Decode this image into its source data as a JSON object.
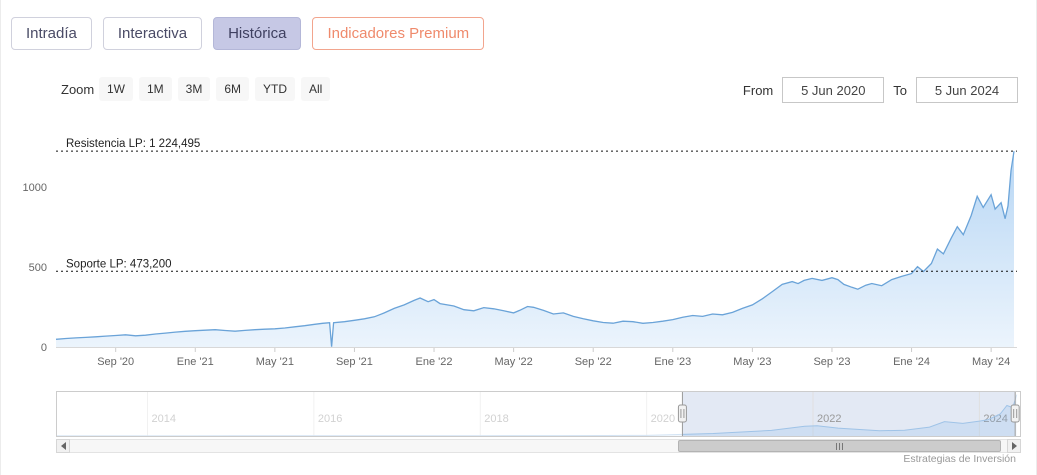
{
  "tabs": [
    {
      "label": "Intradía",
      "active": false
    },
    {
      "label": "Interactiva",
      "active": false
    },
    {
      "label": "Histórica",
      "active": true
    },
    {
      "label": "Indicadores Premium",
      "active": false,
      "premium": true
    }
  ],
  "toolbar": {
    "zoom_label": "Zoom",
    "zoom_buttons": [
      "1W",
      "1M",
      "3M",
      "6M",
      "YTD",
      "All"
    ],
    "from_label": "From",
    "from_value": "5 Jun 2020",
    "to_label": "To",
    "to_value": "5 Jun 2024"
  },
  "chart_data": {
    "type": "area",
    "title": "",
    "xlabel": "",
    "ylabel": "",
    "x_unit": "months since Jun 2020",
    "xlim": [
      0,
      48.3
    ],
    "ylim": [
      0,
      1300
    ],
    "grid": false,
    "yticks": [
      {
        "v": 0,
        "label": "0"
      },
      {
        "v": 500,
        "label": "500"
      },
      {
        "v": 1000,
        "label": "1000"
      }
    ],
    "xticks": [
      {
        "p": 3,
        "label": "Sep '20"
      },
      {
        "p": 7,
        "label": "Ene '21"
      },
      {
        "p": 11,
        "label": "May '21"
      },
      {
        "p": 15,
        "label": "Sep '21"
      },
      {
        "p": 19,
        "label": "Ene '22"
      },
      {
        "p": 23,
        "label": "May '22"
      },
      {
        "p": 27,
        "label": "Sep '22"
      },
      {
        "p": 31,
        "label": "Ene '23"
      },
      {
        "p": 35,
        "label": "May '23"
      },
      {
        "p": 39,
        "label": "Sep '23"
      },
      {
        "p": 43,
        "label": "Ene '24"
      },
      {
        "p": 47,
        "label": "May '24"
      }
    ],
    "points": [
      [
        0,
        48
      ],
      [
        0.5,
        53
      ],
      [
        1,
        57
      ],
      [
        1.5,
        60
      ],
      [
        2,
        64
      ],
      [
        2.5,
        68
      ],
      [
        3,
        72
      ],
      [
        3.5,
        76
      ],
      [
        4,
        70
      ],
      [
        4.5,
        74
      ],
      [
        5,
        81
      ],
      [
        5.5,
        87
      ],
      [
        6,
        93
      ],
      [
        6.5,
        98
      ],
      [
        7,
        102
      ],
      [
        7.5,
        105
      ],
      [
        8,
        108
      ],
      [
        8.5,
        103
      ],
      [
        9,
        99
      ],
      [
        9.5,
        104
      ],
      [
        10,
        108
      ],
      [
        10.5,
        111
      ],
      [
        11,
        114
      ],
      [
        11.5,
        119
      ],
      [
        12,
        126
      ],
      [
        12.5,
        133
      ],
      [
        13,
        142
      ],
      [
        13.4,
        148
      ],
      [
        13.75,
        152
      ],
      [
        13.85,
        2
      ],
      [
        13.95,
        152
      ],
      [
        14.5,
        158
      ],
      [
        15,
        167
      ],
      [
        15.5,
        176
      ],
      [
        16,
        189
      ],
      [
        16.5,
        213
      ],
      [
        17,
        241
      ],
      [
        17.5,
        263
      ],
      [
        18,
        291
      ],
      [
        18.3,
        306
      ],
      [
        18.7,
        283
      ],
      [
        19,
        296
      ],
      [
        19.3,
        271
      ],
      [
        20,
        256
      ],
      [
        20.5,
        233
      ],
      [
        21,
        226
      ],
      [
        21.5,
        246
      ],
      [
        22,
        239
      ],
      [
        22.5,
        226
      ],
      [
        23,
        213
      ],
      [
        23.3,
        229
      ],
      [
        23.7,
        253
      ],
      [
        24,
        248
      ],
      [
        24.5,
        229
      ],
      [
        25,
        206
      ],
      [
        25.5,
        213
      ],
      [
        26,
        191
      ],
      [
        26.5,
        176
      ],
      [
        27,
        164
      ],
      [
        27.5,
        153
      ],
      [
        28,
        149
      ],
      [
        28.5,
        161
      ],
      [
        29,
        158
      ],
      [
        29.5,
        148
      ],
      [
        30,
        153
      ],
      [
        30.5,
        161
      ],
      [
        31,
        171
      ],
      [
        31.5,
        186
      ],
      [
        32,
        197
      ],
      [
        32.5,
        191
      ],
      [
        33,
        206
      ],
      [
        33.5,
        201
      ],
      [
        34,
        216
      ],
      [
        34.5,
        241
      ],
      [
        35,
        263
      ],
      [
        35.5,
        301
      ],
      [
        36,
        346
      ],
      [
        36.5,
        391
      ],
      [
        37,
        409
      ],
      [
        37.3,
        396
      ],
      [
        37.6,
        416
      ],
      [
        38,
        429
      ],
      [
        38.5,
        416
      ],
      [
        39,
        433
      ],
      [
        39.3,
        421
      ],
      [
        39.6,
        391
      ],
      [
        40,
        373
      ],
      [
        40.3,
        361
      ],
      [
        40.7,
        386
      ],
      [
        41,
        397
      ],
      [
        41.5,
        383
      ],
      [
        42,
        421
      ],
      [
        42.5,
        441
      ],
      [
        43,
        459
      ],
      [
        43.3,
        502
      ],
      [
        43.6,
        472
      ],
      [
        44,
        522
      ],
      [
        44.3,
        612
      ],
      [
        44.6,
        582
      ],
      [
        45,
        682
      ],
      [
        45.3,
        752
      ],
      [
        45.6,
        702
      ],
      [
        46,
        822
      ],
      [
        46.3,
        942
      ],
      [
        46.6,
        872
      ],
      [
        47,
        952
      ],
      [
        47.2,
        862
      ],
      [
        47.5,
        902
      ],
      [
        47.7,
        802
      ],
      [
        47.85,
        882
      ],
      [
        48,
        1102
      ],
      [
        48.15,
        1224
      ]
    ],
    "annotations": [
      {
        "name": "resistencia",
        "label": "Resistencia LP: 1 224,495",
        "value": 1224.495
      },
      {
        "name": "soporte",
        "label": "Soporte LP: 473,200",
        "value": 473.2
      }
    ],
    "colors": {
      "line": "#6aa3d8",
      "fill_top": "rgba(124,181,236,0.55)",
      "fill_bottom": "rgba(124,181,236,0.15)",
      "annotation": "#111111",
      "axis_label": "#666666"
    }
  },
  "navigator": {
    "xlim": [
      2012.9,
      2024.5
    ],
    "ylim": [
      0,
      1300
    ],
    "selected": [
      2020.43,
      2024.43
    ],
    "xticks": [
      {
        "p": 2014,
        "label": "2014"
      },
      {
        "p": 2016,
        "label": "2016"
      },
      {
        "p": 2018,
        "label": "2018"
      },
      {
        "p": 2020,
        "label": "2020"
      },
      {
        "p": 2022,
        "label": "2022"
      },
      {
        "p": 2024,
        "label": "2024"
      }
    ],
    "points": [
      [
        2012.9,
        2
      ],
      [
        2013.5,
        3
      ],
      [
        2014,
        4
      ],
      [
        2014.5,
        4
      ],
      [
        2015,
        5
      ],
      [
        2015.5,
        5
      ],
      [
        2016,
        6
      ],
      [
        2016.5,
        7
      ],
      [
        2017,
        8
      ],
      [
        2017.5,
        9
      ],
      [
        2018,
        10
      ],
      [
        2018.5,
        11
      ],
      [
        2019,
        12
      ],
      [
        2019.5,
        14
      ],
      [
        2020,
        18
      ],
      [
        2020.43,
        48
      ],
      [
        2020.8,
        75
      ],
      [
        2021,
        101
      ],
      [
        2021.5,
        165
      ],
      [
        2021.9,
        290
      ],
      [
        2022.05,
        303
      ],
      [
        2022.3,
        232
      ],
      [
        2022.8,
        155
      ],
      [
        2023.1,
        170
      ],
      [
        2023.4,
        264
      ],
      [
        2023.58,
        425
      ],
      [
        2023.8,
        372
      ],
      [
        2024.0,
        440
      ],
      [
        2024.1,
        480
      ],
      [
        2024.25,
        650
      ],
      [
        2024.33,
        900
      ],
      [
        2024.4,
        840
      ],
      [
        2024.45,
        1224
      ]
    ],
    "colors": {
      "line": "#9fc3e7",
      "fill": "rgba(124,181,236,0.2)",
      "selected_mask": "rgba(102,133,194,0.18)",
      "gridline": "#e0e0e0",
      "label": "#999999"
    }
  },
  "theme": {
    "tab_active_bg": "#c6c8e5",
    "premium_accent": "#ef8a6c"
  },
  "credit": "Estrategias de Inversión"
}
